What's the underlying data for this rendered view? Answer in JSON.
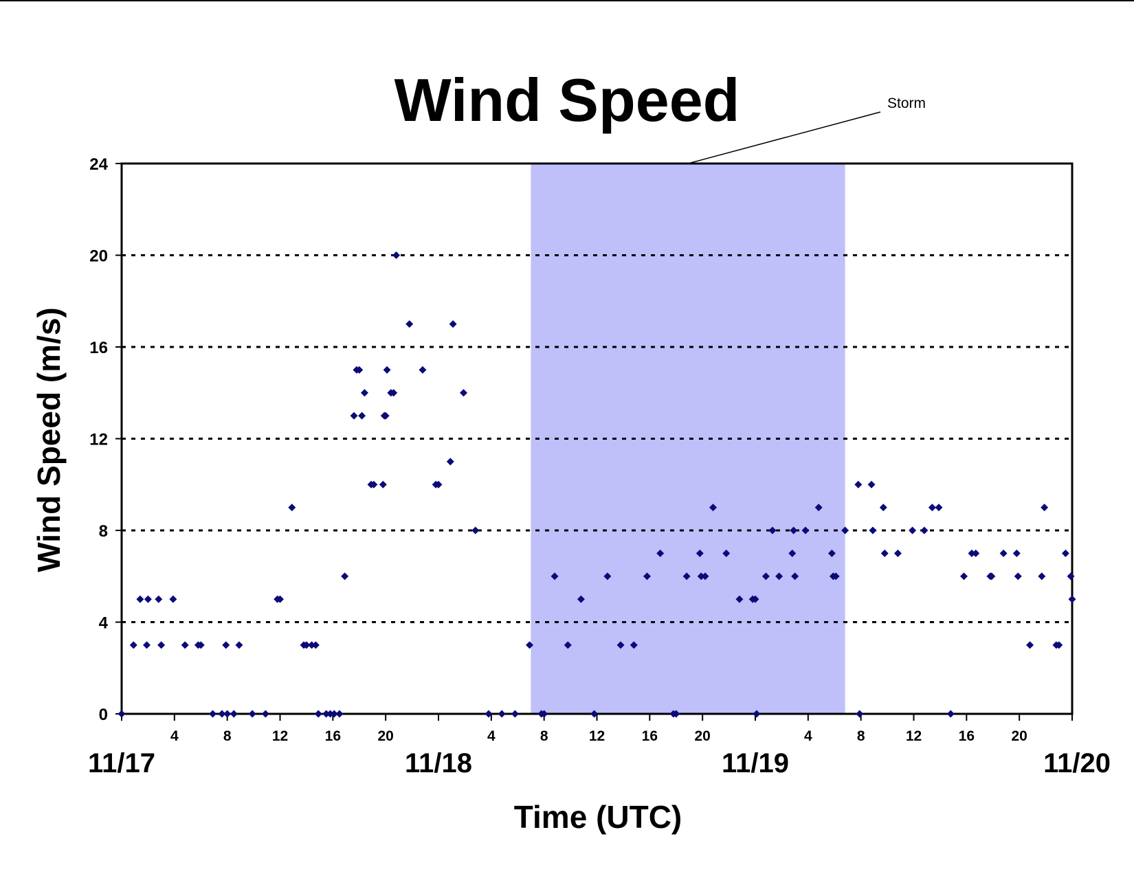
{
  "chart_data": {
    "type": "scatter",
    "title": "Wind Speed",
    "xlabel": "Time (UTC)",
    "ylabel": "Wind Speed (m/s)",
    "x_unit": "hours since 11/17 00:00 UTC",
    "xlim": [
      0,
      72
    ],
    "ylim": [
      0,
      24
    ],
    "y_ticks": [
      0,
      4,
      8,
      12,
      16,
      20,
      24
    ],
    "grid": "horizontal dotted lines at 4, 8, 12, 16, 20",
    "hour_ticks": [
      {
        "x": 4,
        "label": "4"
      },
      {
        "x": 8,
        "label": "8"
      },
      {
        "x": 12,
        "label": "12"
      },
      {
        "x": 16,
        "label": "16"
      },
      {
        "x": 20,
        "label": "20"
      },
      {
        "x": 28,
        "label": "4"
      },
      {
        "x": 32,
        "label": "8"
      },
      {
        "x": 36,
        "label": "12"
      },
      {
        "x": 40,
        "label": "16"
      },
      {
        "x": 44,
        "label": "20"
      },
      {
        "x": 52,
        "label": "4"
      },
      {
        "x": 56,
        "label": "8"
      },
      {
        "x": 60,
        "label": "12"
      },
      {
        "x": 64,
        "label": "16"
      },
      {
        "x": 68,
        "label": "20"
      }
    ],
    "date_ticks": [
      {
        "x": 0,
        "label": "11/17"
      },
      {
        "x": 24,
        "label": "11/18"
      },
      {
        "x": 48,
        "label": "11/19"
      },
      {
        "x": 72,
        "label": "11/20"
      }
    ],
    "storm_period": {
      "label": "Storm",
      "x_start": 31,
      "x_end": 54.8,
      "color": "#bfbffa"
    },
    "marker_color": "#0a0a78",
    "series": [
      {
        "name": "",
        "points": [
          [
            0,
            0
          ],
          [
            0.9,
            3
          ],
          [
            1.4,
            5
          ],
          [
            1.9,
            3
          ],
          [
            2.0,
            5
          ],
          [
            2.8,
            5
          ],
          [
            3.0,
            3
          ],
          [
            3.9,
            5
          ],
          [
            4.8,
            3
          ],
          [
            5.8,
            3
          ],
          [
            6.0,
            3
          ],
          [
            6.9,
            0
          ],
          [
            7.6,
            0
          ],
          [
            7.9,
            3
          ],
          [
            8.0,
            0
          ],
          [
            8.5,
            0
          ],
          [
            8.9,
            3
          ],
          [
            9.9,
            0
          ],
          [
            10.9,
            0
          ],
          [
            11.8,
            5
          ],
          [
            12.0,
            5
          ],
          [
            12.9,
            9
          ],
          [
            13.8,
            3
          ],
          [
            14.0,
            3
          ],
          [
            14.4,
            3
          ],
          [
            14.7,
            3
          ],
          [
            14.9,
            0
          ],
          [
            15.5,
            0
          ],
          [
            15.8,
            0
          ],
          [
            16.1,
            0
          ],
          [
            16.5,
            0
          ],
          [
            16.9,
            6
          ],
          [
            17.6,
            13
          ],
          [
            17.8,
            15
          ],
          [
            18.0,
            15
          ],
          [
            18.2,
            13
          ],
          [
            18.4,
            14
          ],
          [
            18.9,
            10
          ],
          [
            19.1,
            10
          ],
          [
            19.8,
            10
          ],
          [
            19.9,
            13
          ],
          [
            20.0,
            13
          ],
          [
            20.1,
            15
          ],
          [
            20.4,
            14
          ],
          [
            20.6,
            14
          ],
          [
            20.8,
            20
          ],
          [
            21.8,
            17
          ],
          [
            22.8,
            15
          ],
          [
            23.8,
            10
          ],
          [
            24.0,
            10
          ],
          [
            24.9,
            11
          ],
          [
            25.1,
            17
          ],
          [
            25.9,
            14
          ],
          [
            26.8,
            8
          ],
          [
            27.8,
            0
          ],
          [
            28.8,
            0
          ],
          [
            29.8,
            0
          ],
          [
            30.9,
            3
          ],
          [
            31.8,
            0
          ],
          [
            32.0,
            0
          ],
          [
            32.8,
            6
          ],
          [
            33.8,
            3
          ],
          [
            34.8,
            5
          ],
          [
            35.8,
            0
          ],
          [
            36.8,
            6
          ],
          [
            37.8,
            3
          ],
          [
            38.8,
            3
          ],
          [
            39.8,
            6
          ],
          [
            40.8,
            7
          ],
          [
            41.8,
            0
          ],
          [
            42.0,
            0
          ],
          [
            42.8,
            6
          ],
          [
            43.8,
            7
          ],
          [
            43.9,
            6
          ],
          [
            44.2,
            6
          ],
          [
            44.8,
            9
          ],
          [
            45.8,
            7
          ],
          [
            46.8,
            5
          ],
          [
            47.8,
            5
          ],
          [
            48.0,
            5
          ],
          [
            48.1,
            0
          ],
          [
            48.8,
            6
          ],
          [
            49.3,
            8
          ],
          [
            49.8,
            6
          ],
          [
            50.8,
            7
          ],
          [
            50.9,
            8
          ],
          [
            51.0,
            6
          ],
          [
            51.8,
            8
          ],
          [
            52.8,
            9
          ],
          [
            53.8,
            7
          ],
          [
            53.9,
            6
          ],
          [
            54.1,
            6
          ],
          [
            54.8,
            8
          ],
          [
            55.8,
            10
          ],
          [
            55.9,
            0
          ],
          [
            56.8,
            10
          ],
          [
            56.9,
            8
          ],
          [
            57.7,
            9
          ],
          [
            57.8,
            7
          ],
          [
            58.8,
            7
          ],
          [
            59.9,
            8
          ],
          [
            60.8,
            8
          ],
          [
            61.4,
            9
          ],
          [
            61.9,
            9
          ],
          [
            62.8,
            0
          ],
          [
            63.8,
            6
          ],
          [
            64.4,
            7
          ],
          [
            64.7,
            7
          ],
          [
            65.8,
            6
          ],
          [
            65.9,
            6
          ],
          [
            66.8,
            7
          ],
          [
            67.8,
            7
          ],
          [
            67.9,
            6
          ],
          [
            68.8,
            3
          ],
          [
            69.7,
            6
          ],
          [
            69.9,
            9
          ],
          [
            70.8,
            3
          ],
          [
            71.0,
            3
          ],
          [
            71.5,
            7
          ],
          [
            71.9,
            6
          ],
          [
            72.0,
            5
          ]
        ]
      }
    ]
  }
}
